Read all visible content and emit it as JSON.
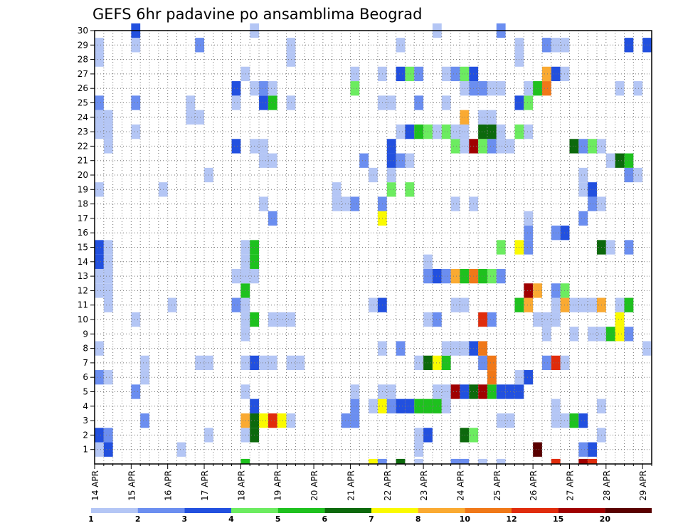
{
  "chart_data": {
    "type": "heatmap",
    "title": "GEFS 6hr padavine po ansamblima Beograd",
    "x_tick_labels": [
      "14 APR",
      "15 APR",
      "16 APR",
      "17 APR",
      "18 APR",
      "19 APR",
      "20 APR",
      "21 APR",
      "22 APR",
      "23 APR",
      "24 APR",
      "25 APR",
      "26 APR",
      "27 APR",
      "28 APR",
      "29 APR"
    ],
    "x_steps_per_day": 4,
    "x_range": [
      0,
      61
    ],
    "y_range": [
      0,
      30
    ],
    "y_tick_labels": [
      "1",
      "2",
      "3",
      "4",
      "5",
      "6",
      "7",
      "8",
      "9",
      "10",
      "11",
      "12",
      "13",
      "14",
      "15",
      "16",
      "17",
      "18",
      "19",
      "20",
      "21",
      "22",
      "23",
      "24",
      "25",
      "26",
      "27",
      "28",
      "29",
      "30"
    ],
    "grid": true,
    "legend_position": "bottom",
    "color_scale": [
      {
        "min": 1,
        "color": "#b4c6f5"
      },
      {
        "min": 2,
        "color": "#6b8ef0"
      },
      {
        "min": 3,
        "color": "#2250df"
      },
      {
        "min": 4,
        "color": "#6cec60"
      },
      {
        "min": 5,
        "color": "#1ec11e"
      },
      {
        "min": 6,
        "color": "#0c690c"
      },
      {
        "min": 7,
        "color": "#fafa00"
      },
      {
        "min": 8,
        "color": "#faaa32"
      },
      {
        "min": 10,
        "color": "#f07818"
      },
      {
        "min": 12,
        "color": "#e02c0c"
      },
      {
        "min": 15,
        "color": "#a00000"
      },
      {
        "min": 20,
        "color": "#5a0000"
      }
    ],
    "legend_labels": [
      "1",
      "2",
      "3",
      "4",
      "5",
      "6",
      "7",
      "8",
      "10",
      "12",
      "15",
      "20"
    ],
    "cells": [
      [
        0,
        1,
        1
      ],
      [
        1,
        1,
        3
      ],
      [
        9,
        1,
        1
      ],
      [
        35,
        1,
        1
      ],
      [
        48,
        1,
        20
      ],
      [
        53,
        1,
        2
      ],
      [
        54,
        1,
        3
      ],
      [
        0,
        2,
        3
      ],
      [
        1,
        2,
        2
      ],
      [
        12,
        2,
        1
      ],
      [
        16,
        2,
        1
      ],
      [
        17,
        2,
        6
      ],
      [
        35,
        2,
        1
      ],
      [
        36,
        2,
        3
      ],
      [
        40,
        2,
        6
      ],
      [
        41,
        2,
        4
      ],
      [
        55,
        2,
        1
      ],
      [
        5,
        3,
        2
      ],
      [
        16,
        3,
        8
      ],
      [
        17,
        3,
        6
      ],
      [
        18,
        3,
        7
      ],
      [
        19,
        3,
        12
      ],
      [
        20,
        3,
        7
      ],
      [
        21,
        3,
        1
      ],
      [
        27,
        3,
        2
      ],
      [
        28,
        3,
        2
      ],
      [
        44,
        3,
        1
      ],
      [
        45,
        3,
        1
      ],
      [
        50,
        3,
        1
      ],
      [
        51,
        3,
        1
      ],
      [
        52,
        3,
        5
      ],
      [
        53,
        3,
        3
      ],
      [
        17,
        4,
        3
      ],
      [
        28,
        4,
        2
      ],
      [
        30,
        4,
        1
      ],
      [
        31,
        4,
        7
      ],
      [
        32,
        4,
        2
      ],
      [
        33,
        4,
        3
      ],
      [
        34,
        4,
        3
      ],
      [
        35,
        4,
        5
      ],
      [
        36,
        4,
        5
      ],
      [
        37,
        4,
        5
      ],
      [
        38,
        4,
        1
      ],
      [
        50,
        4,
        1
      ],
      [
        55,
        4,
        1
      ],
      [
        4,
        5,
        2
      ],
      [
        16,
        5,
        1
      ],
      [
        28,
        5,
        1
      ],
      [
        31,
        5,
        1
      ],
      [
        32,
        5,
        1
      ],
      [
        37,
        5,
        1
      ],
      [
        38,
        5,
        1
      ],
      [
        39,
        5,
        15
      ],
      [
        40,
        5,
        3
      ],
      [
        41,
        5,
        6
      ],
      [
        42,
        5,
        15
      ],
      [
        43,
        5,
        5
      ],
      [
        44,
        5,
        3
      ],
      [
        45,
        5,
        3
      ],
      [
        46,
        5,
        3
      ],
      [
        0,
        6,
        2
      ],
      [
        1,
        6,
        1
      ],
      [
        5,
        6,
        1
      ],
      [
        43,
        6,
        10
      ],
      [
        46,
        6,
        1
      ],
      [
        47,
        6,
        3
      ],
      [
        5,
        7,
        1
      ],
      [
        11,
        7,
        1
      ],
      [
        12,
        7,
        1
      ],
      [
        16,
        7,
        1
      ],
      [
        17,
        7,
        3
      ],
      [
        18,
        7,
        1
      ],
      [
        19,
        7,
        1
      ],
      [
        21,
        7,
        1
      ],
      [
        22,
        7,
        1
      ],
      [
        35,
        7,
        1
      ],
      [
        36,
        7,
        6
      ],
      [
        37,
        7,
        7
      ],
      [
        38,
        7,
        5
      ],
      [
        42,
        7,
        2
      ],
      [
        43,
        7,
        10
      ],
      [
        49,
        7,
        2
      ],
      [
        50,
        7,
        12
      ],
      [
        51,
        7,
        1
      ],
      [
        0,
        8,
        1
      ],
      [
        31,
        8,
        1
      ],
      [
        33,
        8,
        2
      ],
      [
        38,
        8,
        1
      ],
      [
        39,
        8,
        1
      ],
      [
        40,
        8,
        1
      ],
      [
        41,
        8,
        3
      ],
      [
        42,
        8,
        10
      ],
      [
        60,
        8,
        1
      ],
      [
        16,
        9,
        1
      ],
      [
        49,
        9,
        1
      ],
      [
        52,
        9,
        1
      ],
      [
        54,
        9,
        1
      ],
      [
        55,
        9,
        1
      ],
      [
        56,
        9,
        5
      ],
      [
        57,
        9,
        7
      ],
      [
        58,
        9,
        2
      ],
      [
        4,
        10,
        1
      ],
      [
        16,
        10,
        1
      ],
      [
        17,
        10,
        5
      ],
      [
        19,
        10,
        1
      ],
      [
        20,
        10,
        1
      ],
      [
        21,
        10,
        1
      ],
      [
        36,
        10,
        1
      ],
      [
        37,
        10,
        2
      ],
      [
        42,
        10,
        12
      ],
      [
        43,
        10,
        2
      ],
      [
        48,
        10,
        1
      ],
      [
        49,
        10,
        1
      ],
      [
        50,
        10,
        1
      ],
      [
        57,
        10,
        7
      ],
      [
        1,
        11,
        1
      ],
      [
        8,
        11,
        1
      ],
      [
        15,
        11,
        2
      ],
      [
        16,
        11,
        1
      ],
      [
        30,
        11,
        1
      ],
      [
        31,
        11,
        3
      ],
      [
        39,
        11,
        1
      ],
      [
        40,
        11,
        1
      ],
      [
        46,
        11,
        5
      ],
      [
        47,
        11,
        8
      ],
      [
        50,
        11,
        1
      ],
      [
        51,
        11,
        8
      ],
      [
        52,
        11,
        1
      ],
      [
        53,
        11,
        1
      ],
      [
        54,
        11,
        1
      ],
      [
        55,
        11,
        8
      ],
      [
        57,
        11,
        1
      ],
      [
        58,
        11,
        5
      ],
      [
        0,
        12,
        1
      ],
      [
        1,
        12,
        1
      ],
      [
        16,
        12,
        5
      ],
      [
        47,
        12,
        15
      ],
      [
        48,
        12,
        8
      ],
      [
        50,
        12,
        2
      ],
      [
        51,
        12,
        4
      ],
      [
        0,
        13,
        1
      ],
      [
        1,
        13,
        1
      ],
      [
        15,
        13,
        1
      ],
      [
        16,
        13,
        1
      ],
      [
        17,
        13,
        1
      ],
      [
        36,
        13,
        2
      ],
      [
        37,
        13,
        3
      ],
      [
        38,
        13,
        2
      ],
      [
        39,
        13,
        8
      ],
      [
        40,
        13,
        5
      ],
      [
        41,
        13,
        10
      ],
      [
        42,
        13,
        5
      ],
      [
        43,
        13,
        4
      ],
      [
        44,
        13,
        2
      ],
      [
        0,
        14,
        3
      ],
      [
        1,
        14,
        1
      ],
      [
        16,
        14,
        1
      ],
      [
        17,
        14,
        5
      ],
      [
        36,
        14,
        1
      ],
      [
        0,
        15,
        3
      ],
      [
        1,
        15,
        1
      ],
      [
        16,
        15,
        1
      ],
      [
        17,
        15,
        5
      ],
      [
        44,
        15,
        4
      ],
      [
        46,
        15,
        7
      ],
      [
        47,
        15,
        2
      ],
      [
        55,
        15,
        6
      ],
      [
        56,
        15,
        1
      ],
      [
        58,
        15,
        2
      ],
      [
        47,
        16,
        2
      ],
      [
        50,
        16,
        2
      ],
      [
        51,
        16,
        3
      ],
      [
        19,
        17,
        2
      ],
      [
        31,
        17,
        7
      ],
      [
        47,
        17,
        1
      ],
      [
        53,
        17,
        2
      ],
      [
        18,
        18,
        1
      ],
      [
        26,
        18,
        1
      ],
      [
        27,
        18,
        1
      ],
      [
        28,
        18,
        2
      ],
      [
        31,
        18,
        2
      ],
      [
        39,
        18,
        1
      ],
      [
        41,
        18,
        1
      ],
      [
        54,
        18,
        2
      ],
      [
        55,
        18,
        1
      ],
      [
        0,
        19,
        1
      ],
      [
        7,
        19,
        1
      ],
      [
        26,
        19,
        1
      ],
      [
        32,
        19,
        4
      ],
      [
        34,
        19,
        4
      ],
      [
        53,
        19,
        1
      ],
      [
        54,
        19,
        3
      ],
      [
        12,
        20,
        1
      ],
      [
        30,
        20,
        1
      ],
      [
        32,
        20,
        1
      ],
      [
        53,
        20,
        1
      ],
      [
        58,
        20,
        2
      ],
      [
        59,
        20,
        1
      ],
      [
        18,
        21,
        1
      ],
      [
        19,
        21,
        1
      ],
      [
        29,
        21,
        2
      ],
      [
        32,
        21,
        3
      ],
      [
        33,
        21,
        2
      ],
      [
        34,
        21,
        1
      ],
      [
        56,
        21,
        1
      ],
      [
        57,
        21,
        6
      ],
      [
        58,
        21,
        5
      ],
      [
        1,
        22,
        1
      ],
      [
        15,
        22,
        3
      ],
      [
        17,
        22,
        1
      ],
      [
        18,
        22,
        1
      ],
      [
        32,
        22,
        3
      ],
      [
        39,
        22,
        4
      ],
      [
        40,
        22,
        1
      ],
      [
        41,
        22,
        15
      ],
      [
        42,
        22,
        4
      ],
      [
        43,
        22,
        2
      ],
      [
        44,
        22,
        1
      ],
      [
        45,
        22,
        1
      ],
      [
        52,
        22,
        6
      ],
      [
        53,
        22,
        2
      ],
      [
        54,
        22,
        4
      ],
      [
        55,
        22,
        1
      ],
      [
        0,
        23,
        1
      ],
      [
        1,
        23,
        1
      ],
      [
        4,
        23,
        1
      ],
      [
        33,
        23,
        1
      ],
      [
        34,
        23,
        3
      ],
      [
        35,
        23,
        5
      ],
      [
        36,
        23,
        4
      ],
      [
        37,
        23,
        1
      ],
      [
        38,
        23,
        4
      ],
      [
        39,
        23,
        1
      ],
      [
        40,
        23,
        1
      ],
      [
        42,
        23,
        6
      ],
      [
        43,
        23,
        6
      ],
      [
        44,
        23,
        1
      ],
      [
        46,
        23,
        4
      ],
      [
        47,
        23,
        1
      ],
      [
        0,
        24,
        1
      ],
      [
        1,
        24,
        1
      ],
      [
        10,
        24,
        1
      ],
      [
        11,
        24,
        1
      ],
      [
        40,
        24,
        8
      ],
      [
        42,
        24,
        1
      ],
      [
        43,
        24,
        1
      ],
      [
        0,
        25,
        2
      ],
      [
        4,
        25,
        2
      ],
      [
        10,
        25,
        1
      ],
      [
        15,
        25,
        1
      ],
      [
        18,
        25,
        3
      ],
      [
        19,
        25,
        5
      ],
      [
        21,
        25,
        1
      ],
      [
        31,
        25,
        1
      ],
      [
        32,
        25,
        1
      ],
      [
        35,
        25,
        2
      ],
      [
        38,
        25,
        1
      ],
      [
        46,
        25,
        3
      ],
      [
        47,
        25,
        4
      ],
      [
        15,
        26,
        3
      ],
      [
        17,
        26,
        1
      ],
      [
        18,
        26,
        2
      ],
      [
        19,
        26,
        1
      ],
      [
        28,
        26,
        4
      ],
      [
        40,
        26,
        1
      ],
      [
        41,
        26,
        2
      ],
      [
        42,
        26,
        2
      ],
      [
        43,
        26,
        1
      ],
      [
        44,
        26,
        1
      ],
      [
        47,
        26,
        1
      ],
      [
        48,
        26,
        5
      ],
      [
        49,
        26,
        10
      ],
      [
        57,
        26,
        1
      ],
      [
        59,
        26,
        1
      ],
      [
        16,
        27,
        1
      ],
      [
        28,
        27,
        1
      ],
      [
        31,
        27,
        1
      ],
      [
        33,
        27,
        3
      ],
      [
        34,
        27,
        4
      ],
      [
        35,
        27,
        2
      ],
      [
        38,
        27,
        1
      ],
      [
        39,
        27,
        2
      ],
      [
        40,
        27,
        4
      ],
      [
        41,
        27,
        3
      ],
      [
        49,
        27,
        8
      ],
      [
        50,
        27,
        3
      ],
      [
        51,
        27,
        1
      ],
      [
        0,
        28,
        1
      ],
      [
        21,
        28,
        1
      ],
      [
        46,
        28,
        1
      ],
      [
        0,
        29,
        1
      ],
      [
        4,
        29,
        1
      ],
      [
        11,
        29,
        2
      ],
      [
        21,
        29,
        1
      ],
      [
        33,
        29,
        1
      ],
      [
        46,
        29,
        1
      ],
      [
        49,
        29,
        2
      ],
      [
        50,
        29,
        1
      ],
      [
        51,
        29,
        1
      ],
      [
        58,
        29,
        3
      ],
      [
        60,
        29,
        3
      ],
      [
        17,
        30,
        1
      ],
      [
        37,
        30,
        1
      ],
      [
        4,
        30,
        3
      ],
      [
        44,
        30,
        2
      ]
    ],
    "bottom_marks": [
      [
        16,
        5
      ],
      [
        30,
        7
      ],
      [
        31,
        2
      ],
      [
        33,
        6
      ],
      [
        35,
        1
      ],
      [
        39,
        2
      ],
      [
        40,
        2
      ],
      [
        42,
        1
      ],
      [
        44,
        1
      ],
      [
        50,
        12
      ],
      [
        53,
        15
      ],
      [
        54,
        12
      ]
    ]
  }
}
